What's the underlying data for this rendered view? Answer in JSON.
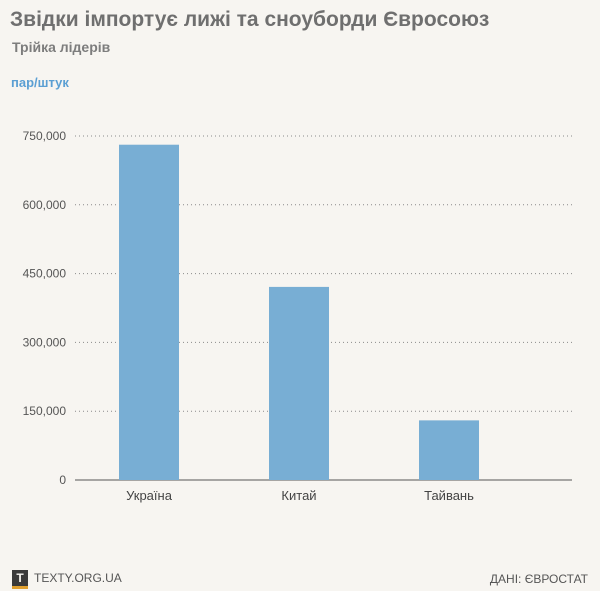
{
  "header": {
    "title": "Звідки імпортує лижі та сноуборди Євросоюз",
    "subtitle": "Трійка лідерів",
    "unit": "пар/штук"
  },
  "footer": {
    "logo_letter": "T",
    "site": "TEXTY.ORG.UA",
    "source": "ДАНІ: ЄВРОСТАТ"
  },
  "colors": {
    "bar": "#78aed4",
    "grid": "#8a8a8a",
    "axis": "#555555",
    "title": "#6f6f6f",
    "unit": "#5b9fd3"
  },
  "chart_data": {
    "type": "bar",
    "categories": [
      "Україна",
      "Китай",
      "Тайвань"
    ],
    "values": [
      731000,
      421000,
      130000
    ],
    "yticks": [
      0,
      150000,
      300000,
      450000,
      600000,
      750000
    ],
    "ytick_labels": [
      "0",
      "150,000",
      "300,000",
      "450,000",
      "600,000",
      "750,000"
    ],
    "ylim": [
      0,
      750000
    ],
    "ylabel": "пар/штук",
    "xlabel": "",
    "grid": true
  }
}
